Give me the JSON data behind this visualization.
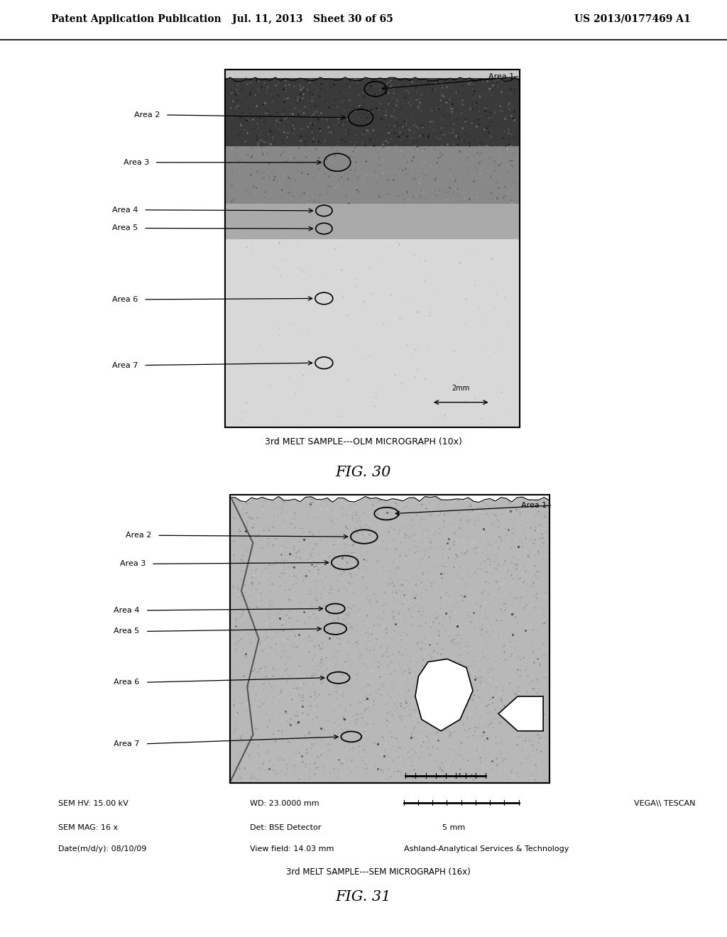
{
  "background_color": "#ffffff",
  "header_left": "Patent Application Publication",
  "header_mid": "Jul. 11, 2013   Sheet 30 of 65",
  "header_right": "US 2013/0177469 A1",
  "fig30_caption": "3rd MELT SAMPLE---OLM MICROGRAPH (10x)",
  "fig30_label": "FIG. 30",
  "fig31_label": "FIG. 31",
  "fig31_sem_line1": "SEM HV: 15.00 kV",
  "fig31_wd_line1": "WD: 23.0000 mm",
  "fig31_vega": "VEGA\\\\ TESCAN",
  "fig31_sem_line2": "SEM MAG: 16 x",
  "fig31_det": "Det: BSE Detector",
  "fig31_5mm": "5 mm",
  "fig31_date": "Date(m/d/y): 08/10/09",
  "fig31_vf": "View field: 14.03 mm",
  "fig31_ashland": "Ashland-Analytical Services & Technology",
  "fig31_caption": "3rd MELT SAMPLE---SEM MICROGRAPH (16x)"
}
